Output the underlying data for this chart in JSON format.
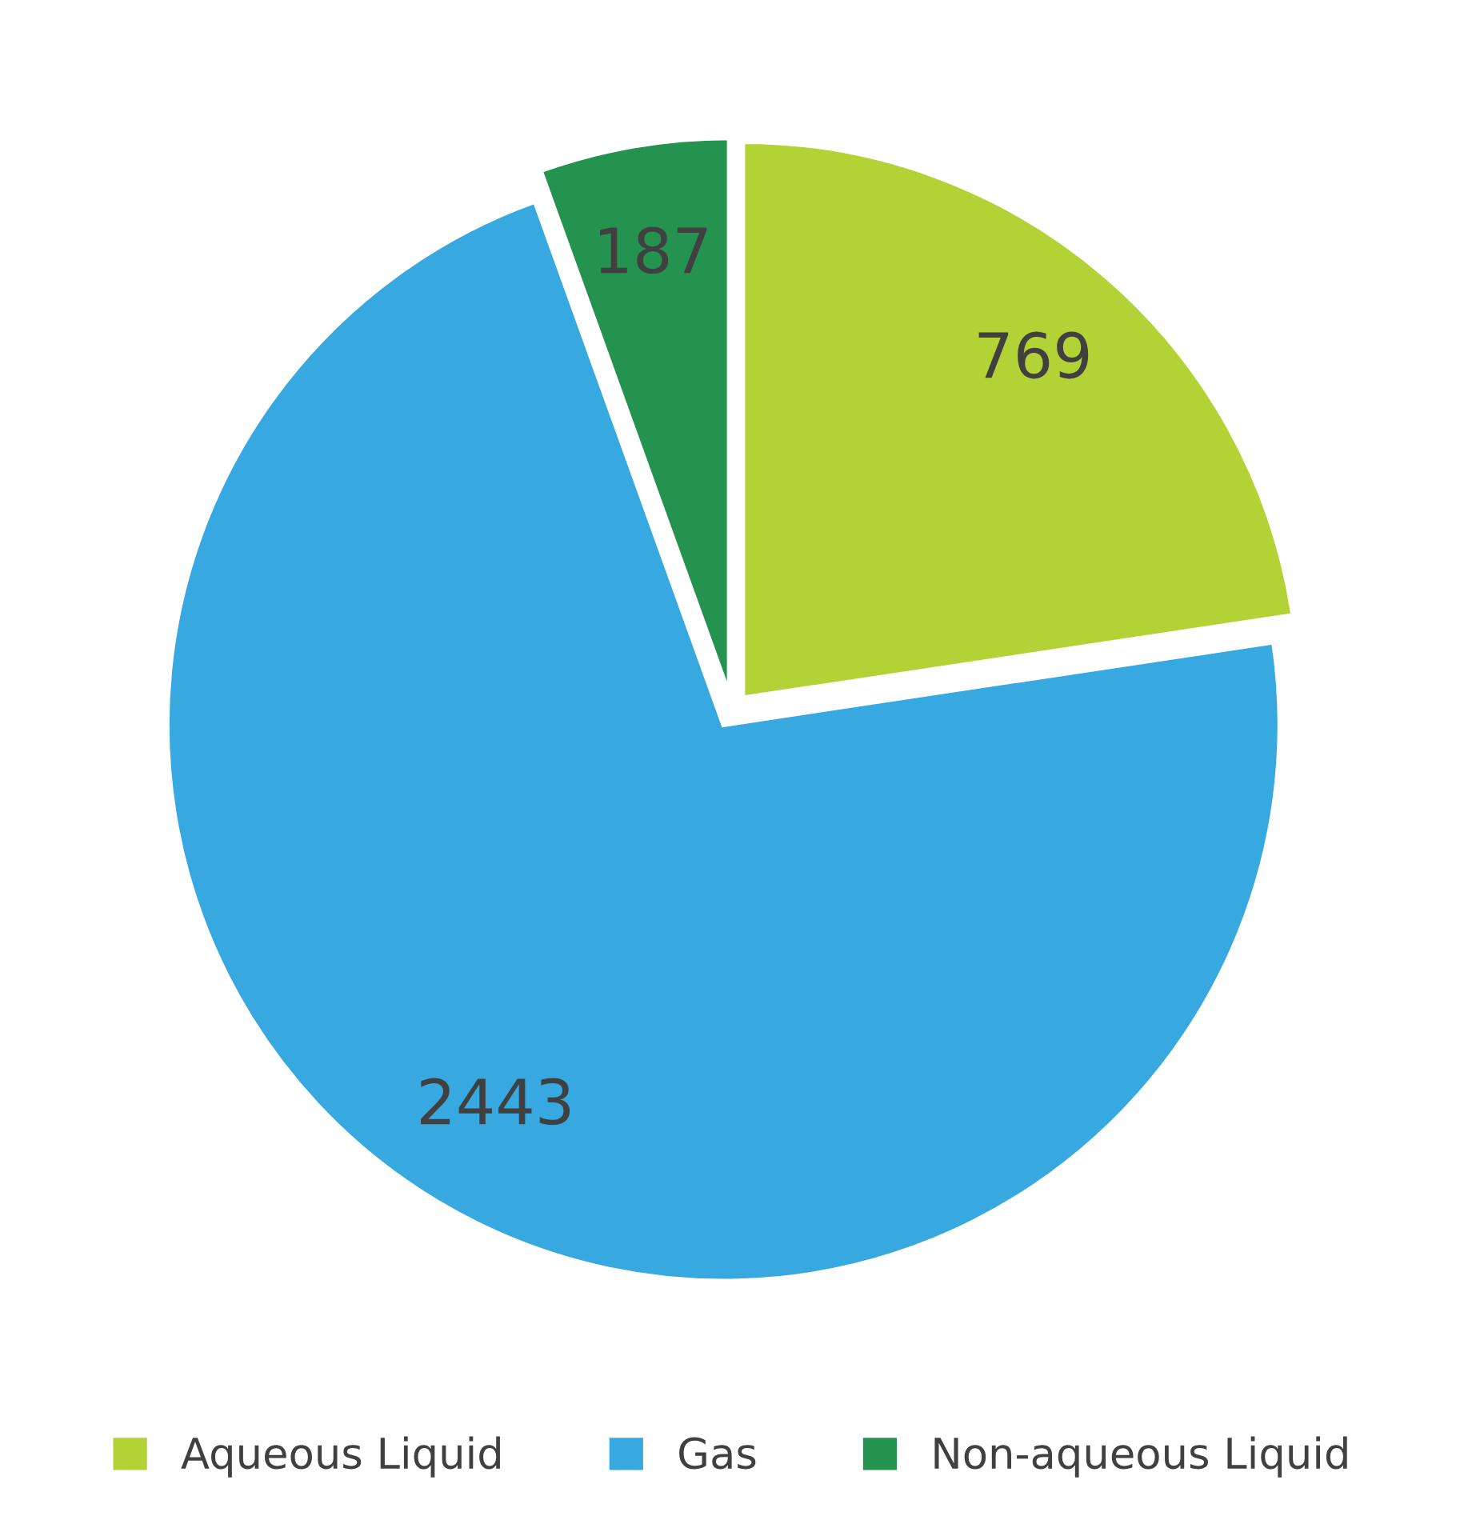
{
  "chart_data": {
    "type": "pie",
    "categories": [
      "Aqueous Liquid",
      "Gas",
      "Non-aqueous Liquid"
    ],
    "values": [
      769,
      2443,
      187
    ],
    "colors": [
      "#b2d235",
      "#38a8e0",
      "#259350"
    ],
    "data_labels": true,
    "legend": "bottom"
  }
}
